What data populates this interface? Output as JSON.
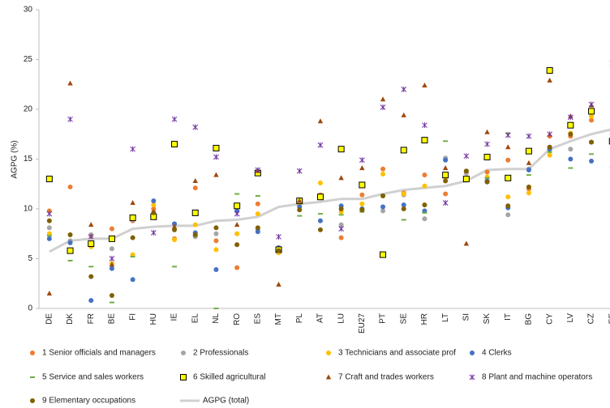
{
  "chart_data": {
    "type": "scatter",
    "y_label": "AGPG (%)",
    "categories": [
      "DE",
      "DK",
      "FR",
      "BE",
      "FI",
      "HU",
      "IE",
      "EL",
      "NL",
      "RO",
      "ES",
      "MT",
      "PL",
      "AT",
      "LU",
      "EU27",
      "PT",
      "SE",
      "HR",
      "LT",
      "SI",
      "SK",
      "IT",
      "BG",
      "CY",
      "LV",
      "CZ",
      "EE"
    ],
    "ylim": [
      0,
      30
    ],
    "yticks": [
      0,
      5,
      10,
      15,
      20,
      25,
      30
    ],
    "series": [
      {
        "name": "1 Senior officials and managers",
        "color": "#ed7d31",
        "marker": "circle",
        "values": [
          9.8,
          12.2,
          7.3,
          8.0,
          8.8,
          10.0,
          7.0,
          12.1,
          6.8,
          4.1,
          10.5,
          5.6,
          10.9,
          11.4,
          7.1,
          11.4,
          14.0,
          11.6,
          13.4,
          11.5,
          13.6,
          13.7,
          14.9,
          12.0,
          17.3,
          17.3,
          18.9,
          17.5
        ]
      },
      {
        "name": "2 Professionals",
        "color": "#a5a5a5",
        "marker": "circle",
        "values": [
          8.1,
          6.8,
          7.4,
          6.0,
          8.9,
          9.5,
          8.5,
          7.2,
          7.5,
          9.8,
          7.9,
          5.9,
          10.3,
          11.1,
          8.4,
          10.0,
          9.8,
          11.4,
          9.0,
          15.1,
          13.6,
          12.8,
          9.4,
          14.0,
          16.1,
          16.0,
          16.7,
          17.0
        ]
      },
      {
        "name": "3 Technicians and associate prof",
        "color": "#ffc000",
        "marker": "circle",
        "values": [
          7.5,
          6.6,
          6.2,
          4.5,
          5.4,
          10.4,
          6.9,
          8.4,
          5.9,
          7.5,
          9.5,
          5.6,
          10.6,
          12.6,
          9.7,
          10.5,
          13.5,
          11.5,
          12.3,
          13.1,
          13.0,
          13.2,
          11.2,
          11.6,
          15.4,
          17.6,
          19.3,
          17.0
        ]
      },
      {
        "name": "4 Clerks",
        "color": "#4472c4",
        "marker": "circle",
        "values": [
          7.0,
          6.6,
          0.8,
          4.0,
          2.9,
          10.8,
          8.5,
          7.6,
          3.9,
          9.8,
          7.7,
          6.1,
          10.2,
          8.8,
          10.3,
          10.0,
          10.2,
          10.4,
          9.8,
          14.9,
          12.9,
          12.8,
          10.1,
          13.9,
          16.0,
          15.0,
          14.8,
          16.5
        ]
      },
      {
        "name": "5 Service and sales workers",
        "color": "#70ad47",
        "marker": "dash",
        "values": [
          7.3,
          4.8,
          4.2,
          0.6,
          5.2,
          9.5,
          4.2,
          7.3,
          0.0,
          11.5,
          11.3,
          5.9,
          9.3,
          9.5,
          9.4,
          9.7,
          11.4,
          8.9,
          9.6,
          16.8,
          13.8,
          13.1,
          17.6,
          13.4,
          15.7,
          14.1,
          15.5,
          14.2
        ]
      },
      {
        "name": "6 Skilled agricultural",
        "color": "#ffff00",
        "marker": "square",
        "values": [
          13.0,
          5.8,
          6.5,
          7.0,
          9.1,
          9.2,
          16.5,
          9.6,
          16.1,
          10.3,
          13.6,
          5.9,
          10.8,
          11.2,
          16.0,
          12.4,
          5.4,
          15.9,
          16.9,
          13.4,
          13.0,
          15.2,
          13.1,
          15.8,
          23.9,
          18.4,
          19.8,
          16.8
        ]
      },
      {
        "name": "7 Craft and trades workers",
        "color": "#9e480e",
        "marker": "triangle",
        "values": [
          1.5,
          22.6,
          8.4,
          4.4,
          10.6,
          9.7,
          8.2,
          12.8,
          13.4,
          8.4,
          13.8,
          2.4,
          10.8,
          18.8,
          13.1,
          14.1,
          21.0,
          19.4,
          22.4,
          14.1,
          6.5,
          17.7,
          16.2,
          14.6,
          22.9,
          19.3,
          20.4,
          18.0
        ]
      },
      {
        "name": "8 Plant and machine operators",
        "color": "#7030a0",
        "marker": "star",
        "values": [
          9.5,
          19.0,
          7.2,
          5.0,
          16.0,
          7.6,
          19.0,
          18.2,
          15.2,
          9.5,
          13.9,
          7.2,
          13.8,
          16.4,
          8.0,
          14.9,
          20.2,
          22.0,
          18.4,
          10.6,
          15.3,
          16.5,
          17.4,
          17.3,
          17.5,
          19.2,
          20.5,
          24.6
        ]
      },
      {
        "name": "9 Elementary  occupations",
        "color": "#806000",
        "marker": "circle",
        "values": [
          8.8,
          7.4,
          3.2,
          1.3,
          7.1,
          9.6,
          7.9,
          7.4,
          8.1,
          6.4,
          8.1,
          5.8,
          9.9,
          7.9,
          10.0,
          9.9,
          11.3,
          10.0,
          10.4,
          12.8,
          13.8,
          12.7,
          10.3,
          12.2,
          16.2,
          17.5,
          16.7,
          17.0
        ]
      },
      {
        "name": "AGPG (total)",
        "color": "#d0d0d0",
        "marker": "line",
        "values": [
          5.7,
          6.8,
          7.0,
          7.0,
          8.0,
          8.2,
          8.3,
          8.3,
          8.8,
          8.9,
          9.2,
          10.2,
          10.5,
          10.7,
          11.0,
          11.0,
          11.5,
          11.9,
          12.1,
          12.3,
          12.8,
          13.9,
          14.0,
          14.0,
          16.0,
          16.8,
          17.5,
          18.0
        ]
      }
    ]
  }
}
